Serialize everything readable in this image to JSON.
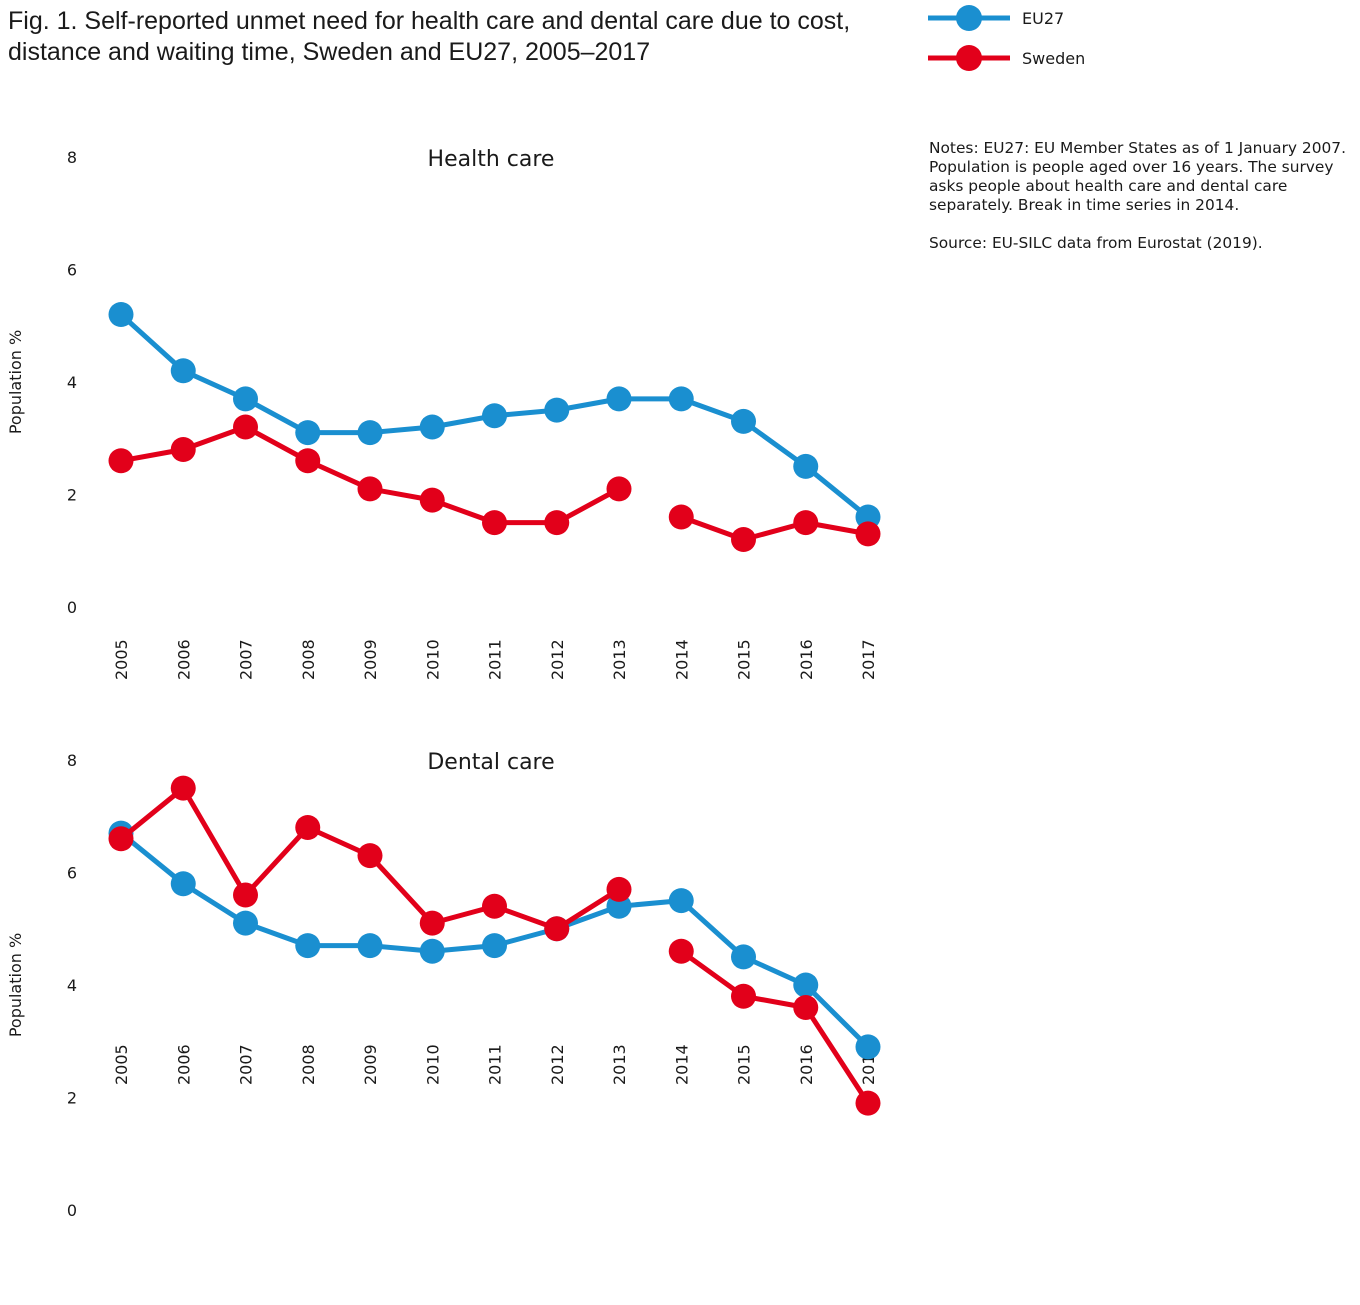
{
  "title": "Fig. 1. Self-reported unmet need for health care and dental care due to cost, distance and waiting time, Sweden and EU27, 2005–2017",
  "notes": "Notes: EU27: EU Member States as of 1 January 2007. Population is people aged over 16 years. The survey asks people about health care and dental care separately. Break in time series in 2014.",
  "source": "Source: EU-SILC data from Eurostat (2019).",
  "colors": {
    "EU27": "#1a8fd0",
    "Sweden": "#e2001a"
  },
  "legend": [
    {
      "name": "EU27",
      "color": "#1a8fd0"
    },
    {
      "name": "Sweden",
      "color": "#e2001a"
    }
  ],
  "chart_data": [
    {
      "type": "line",
      "title": "Health care",
      "ylabel": "Population %",
      "ylim": [
        0,
        8
      ],
      "yticks": [
        0,
        2,
        4,
        6,
        8
      ],
      "categories": [
        "2005",
        "2006",
        "2007",
        "2008",
        "2009",
        "2010",
        "2011",
        "2012",
        "2013",
        "2014",
        "2015",
        "2016",
        "2017"
      ],
      "series": [
        {
          "name": "EU27",
          "values": [
            5.2,
            4.2,
            3.7,
            3.1,
            3.1,
            3.2,
            3.4,
            3.5,
            3.7,
            3.7,
            3.3,
            2.5,
            1.6
          ]
        },
        {
          "name": "Sweden",
          "values": [
            2.6,
            2.8,
            3.2,
            2.6,
            2.1,
            1.9,
            1.5,
            1.5,
            2.1,
            1.6,
            1.2,
            1.5,
            1.3
          ]
        }
      ]
    },
    {
      "type": "line",
      "title": "Dental care",
      "ylabel": "Population %",
      "ylim": [
        0,
        8
      ],
      "yticks": [
        0,
        2,
        4,
        6,
        8
      ],
      "categories": [
        "2005",
        "2006",
        "2007",
        "2008",
        "2009",
        "2010",
        "2011",
        "2012",
        "2013",
        "2014",
        "2015",
        "2016",
        "2017"
      ],
      "series": [
        {
          "name": "EU27",
          "values": [
            6.7,
            5.8,
            5.1,
            4.7,
            4.7,
            4.6,
            4.7,
            5.0,
            5.4,
            5.5,
            4.5,
            4.0,
            2.9
          ]
        },
        {
          "name": "Sweden",
          "values": [
            6.6,
            7.5,
            5.6,
            6.8,
            6.3,
            5.1,
            5.4,
            5.0,
            5.7,
            4.6,
            3.8,
            3.6,
            1.9
          ]
        }
      ]
    }
  ]
}
